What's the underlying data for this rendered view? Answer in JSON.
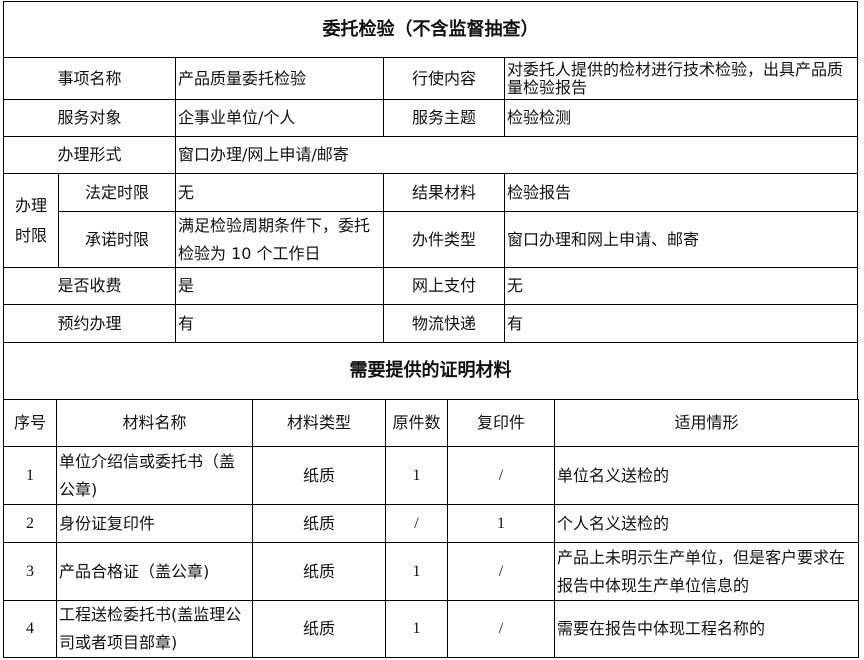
{
  "title": "委托检验（不含监督抽查）",
  "info": {
    "item_name_label": "事项名称",
    "item_name": "产品质量委托检验",
    "content_label": "行使内容",
    "content": "对委托人提供的检材进行技术检验，出具产品质量检验报告",
    "target_label": "服务对象",
    "target": "企事业单位/个人",
    "theme_label": "服务主题",
    "theme": "检验检测",
    "form_label": "办理形式",
    "form": "窗口办理/网上申请/邮寄",
    "time_label": "办理时限",
    "legal_label": "法定时限",
    "legal": "无",
    "result_label": "结果材料",
    "result": "检验报告",
    "promise_label": "承诺时限",
    "promise": "满足检验周期条件下，委托检验为 10 个工作日",
    "type_label": "办件类型",
    "type": "窗口办理和网上申请、邮寄",
    "fee_label": "是否收费",
    "fee": "是",
    "pay_label": "网上支付",
    "pay": "无",
    "appoint_label": "预约办理",
    "appoint": "有",
    "logistics_label": "物流快递",
    "logistics": "有"
  },
  "materials": {
    "title": "需要提供的证明材料",
    "headers": [
      "序号",
      "材料名称",
      "材料类型",
      "原件数",
      "复印件",
      "适用情形"
    ],
    "rows": [
      [
        "1",
        "单位介绍信或委托书（盖公章)",
        "纸质",
        "1",
        "/",
        "单位名义送检的"
      ],
      [
        "2",
        "身份证复印件",
        "纸质",
        "/",
        "1",
        "个人名义送检的"
      ],
      [
        "3",
        "产品合格证（盖公章)",
        "纸质",
        "1",
        "/",
        "产品上未明示生产单位，但是客户要求在报告中体现生产单位信息的"
      ],
      [
        "4",
        "工程送检委托书(盖监理公司或者项目部章)",
        "纸质",
        "1",
        "/",
        "需要在报告中体现工程名称的"
      ]
    ]
  }
}
